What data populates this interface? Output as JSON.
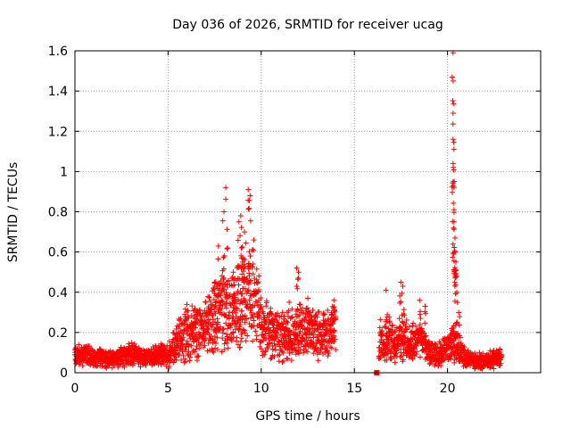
{
  "chart_data": {
    "type": "scatter",
    "title": "Day 036 of 2026, SRMTID for receiver ucag",
    "xlabel": "GPS time / hours",
    "ylabel": "SRMTID / TECUs",
    "xlim": [
      0,
      25
    ],
    "ylim": [
      0,
      1.6
    ],
    "grid": true,
    "xticks": [
      0,
      5,
      10,
      15,
      20
    ],
    "xtick_labels": [
      "0",
      "5",
      "10",
      "15",
      "20"
    ],
    "yticks": [
      0,
      0.2,
      0.4,
      0.6,
      0.8,
      1.0,
      1.2,
      1.4,
      1.6
    ],
    "ytick_labels": [
      "0",
      "0.2",
      "0.4",
      "0.6",
      "0.8",
      "1",
      "1.2",
      "1.4",
      "1.6"
    ],
    "marker": "+",
    "color": "#ff0000",
    "series": [
      {
        "name": "SRMTID",
        "envelope": [
          [
            0.0,
            0.08
          ],
          [
            0.5,
            0.09
          ],
          [
            1.0,
            0.08
          ],
          [
            1.5,
            0.07
          ],
          [
            2.0,
            0.07
          ],
          [
            2.5,
            0.08
          ],
          [
            3.0,
            0.1
          ],
          [
            3.5,
            0.08
          ],
          [
            4.0,
            0.07
          ],
          [
            4.5,
            0.09
          ],
          [
            5.0,
            0.08
          ],
          [
            5.5,
            0.15
          ],
          [
            6.0,
            0.2
          ],
          [
            6.5,
            0.22
          ],
          [
            7.0,
            0.22
          ],
          [
            7.5,
            0.28
          ],
          [
            8.0,
            0.33
          ],
          [
            8.5,
            0.28
          ],
          [
            9.0,
            0.38
          ],
          [
            9.5,
            0.4
          ],
          [
            10.0,
            0.25
          ],
          [
            10.5,
            0.2
          ],
          [
            11.0,
            0.19
          ],
          [
            11.5,
            0.18
          ],
          [
            12.0,
            0.22
          ],
          [
            12.5,
            0.2
          ],
          [
            13.0,
            0.18
          ],
          [
            13.5,
            0.2
          ],
          [
            14.0,
            0.22
          ],
          [
            16.3,
            0.15
          ],
          [
            16.8,
            0.17
          ],
          [
            17.2,
            0.15
          ],
          [
            17.6,
            0.18
          ],
          [
            18.0,
            0.14
          ],
          [
            18.5,
            0.17
          ],
          [
            19.0,
            0.1
          ],
          [
            19.5,
            0.09
          ],
          [
            20.0,
            0.12
          ],
          [
            20.4,
            0.15
          ],
          [
            20.6,
            0.12
          ],
          [
            21.0,
            0.07
          ],
          [
            21.5,
            0.06
          ],
          [
            22.0,
            0.06
          ],
          [
            22.5,
            0.07
          ],
          [
            22.9,
            0.07
          ]
        ],
        "spikes": [
          [
            8.0,
            0.8
          ],
          [
            8.1,
            0.92
          ],
          [
            8.2,
            0.62
          ],
          [
            7.5,
            0.45
          ],
          [
            7.7,
            0.63
          ],
          [
            8.8,
            0.75
          ],
          [
            8.9,
            0.78
          ],
          [
            9.1,
            0.7
          ],
          [
            9.3,
            0.91
          ],
          [
            9.4,
            0.88
          ],
          [
            9.6,
            0.66
          ],
          [
            9.0,
            0.55
          ],
          [
            8.5,
            0.5
          ],
          [
            10.5,
            0.32
          ],
          [
            11.5,
            0.35
          ],
          [
            11.9,
            0.52
          ],
          [
            12.0,
            0.5
          ],
          [
            12.5,
            0.37
          ],
          [
            13.9,
            0.36
          ],
          [
            16.7,
            0.41
          ],
          [
            17.5,
            0.45
          ],
          [
            17.6,
            0.43
          ],
          [
            18.5,
            0.36
          ],
          [
            18.8,
            0.33
          ],
          [
            20.3,
            1.59
          ],
          [
            20.3,
            1.45
          ],
          [
            20.3,
            1.29
          ],
          [
            20.3,
            1.16
          ],
          [
            20.3,
            1.04
          ],
          [
            20.3,
            0.93
          ],
          [
            20.35,
            0.81
          ],
          [
            20.35,
            0.75
          ],
          [
            20.4,
            0.67
          ],
          [
            20.4,
            0.6
          ],
          [
            20.45,
            0.55
          ],
          [
            20.5,
            0.4
          ],
          [
            20.6,
            0.3
          ]
        ],
        "markers_square": [
          [
            16.2,
            0.0
          ]
        ]
      }
    ]
  }
}
